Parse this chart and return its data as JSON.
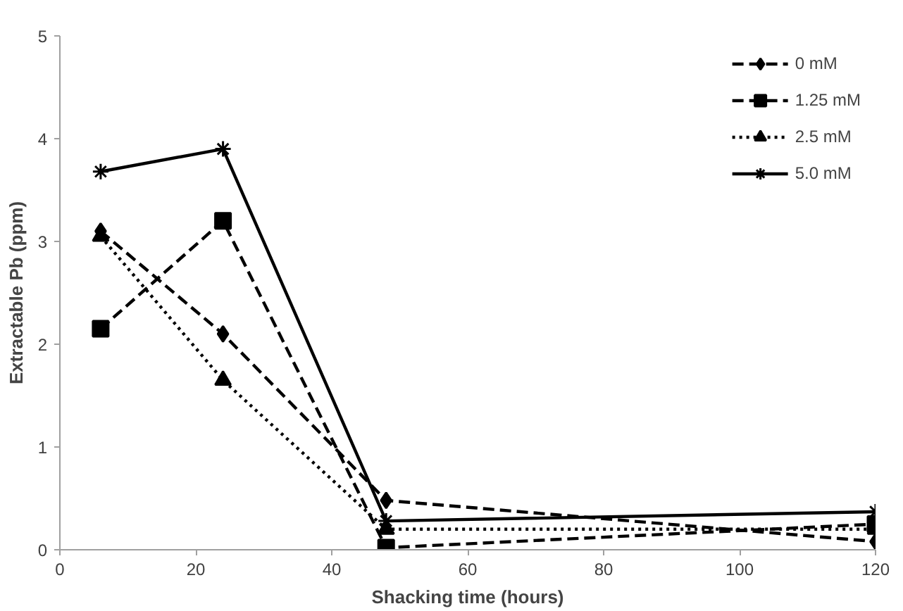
{
  "chart_data": {
    "type": "line",
    "xlabel": "Shacking time (hours)",
    "ylabel": "Extractable Pb (ppm)",
    "x": [
      6,
      24,
      48,
      120
    ],
    "series": [
      {
        "name": "0 mM",
        "color": "#000000",
        "values": [
          3.1,
          2.1,
          0.48,
          0.08
        ],
        "marker": "diamond",
        "line_style": "dashed"
      },
      {
        "name": "1.25 mM",
        "color": "#000000",
        "values": [
          2.15,
          3.2,
          0.02,
          0.25
        ],
        "marker": "square",
        "line_style": "dashed"
      },
      {
        "name": "2.5 mM",
        "color": "#000000",
        "values": [
          3.05,
          1.65,
          0.2,
          0.2
        ],
        "marker": "triangle",
        "line_style": "dotted"
      },
      {
        "name": "5.0 mM",
        "color": "#000000",
        "values": [
          3.68,
          3.9,
          0.28,
          0.37
        ],
        "marker": "cross",
        "line_style": "solid"
      }
    ],
    "xlim": [
      0,
      120
    ],
    "xticks": [
      0,
      20,
      40,
      60,
      80,
      100,
      120
    ],
    "ylim": [
      0,
      5
    ],
    "yticks": [
      0,
      1,
      2,
      3,
      4,
      5
    ],
    "grid": false,
    "legend": "top right"
  }
}
